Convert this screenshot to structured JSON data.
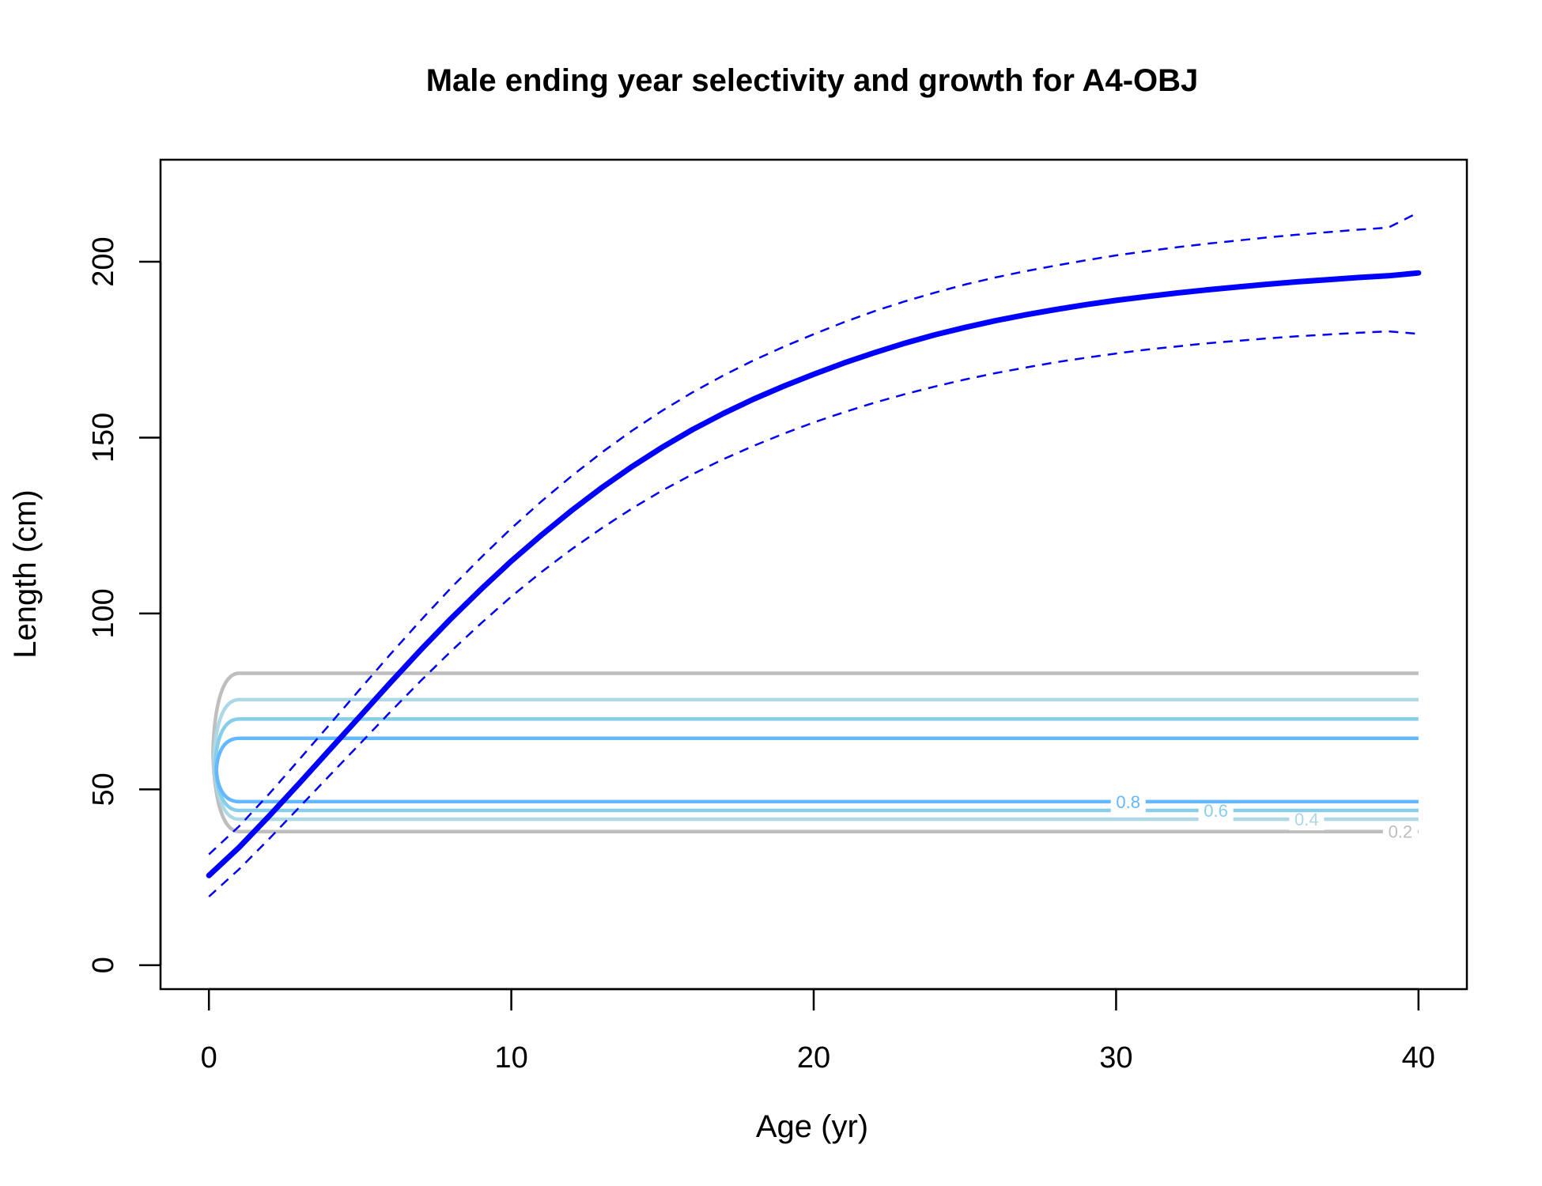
{
  "chart_data": {
    "type": "line",
    "title": "Male ending year selectivity and growth for A4-OBJ",
    "xlabel": "Age (yr)",
    "ylabel": "Length (cm)",
    "xlim": [
      -1.6,
      41.6
    ],
    "ylim": [
      -6.8,
      229
    ],
    "xticks": [
      0,
      10,
      20,
      30,
      40
    ],
    "yticks": [
      0,
      50,
      100,
      150,
      200
    ],
    "grid": false,
    "series": [
      {
        "role": "mean",
        "color": "#0000FF",
        "style": "solid",
        "x": [
          0,
          1,
          2,
          3,
          4,
          5,
          6,
          7,
          8,
          9,
          10,
          11,
          12,
          13,
          14,
          15,
          16,
          17,
          18,
          19,
          20,
          21,
          22,
          23,
          24,
          25,
          26,
          27,
          28,
          29,
          30,
          31,
          32,
          33,
          34,
          35,
          36,
          37,
          38,
          39,
          40
        ],
        "y": [
          25.5,
          33.5,
          42.5,
          51.8,
          61.3,
          70.8,
          80.3,
          89.6,
          98.5,
          106.9,
          114.9,
          122.3,
          129.3,
          135.8,
          141.8,
          147.3,
          152.3,
          156.8,
          160.9,
          164.6,
          168,
          171.2,
          174.1,
          176.8,
          179.2,
          181.3,
          183.2,
          184.9,
          186.4,
          187.8,
          189,
          190.1,
          191.1,
          192,
          192.8,
          193.6,
          194.3,
          194.9,
          195.5,
          196,
          196.8
        ]
      },
      {
        "role": "upper-interval",
        "color": "#0000FF",
        "style": "dashed",
        "x": [
          0,
          1,
          2,
          3,
          4,
          5,
          6,
          7,
          8,
          9,
          10,
          11,
          12,
          13,
          14,
          15,
          16,
          17,
          18,
          19,
          20,
          21,
          22,
          23,
          24,
          25,
          26,
          27,
          28,
          29,
          30,
          31,
          32,
          33,
          34,
          35,
          36,
          37,
          38,
          39,
          40
        ],
        "y": [
          31.5,
          39.5,
          48.8,
          58.6,
          68.5,
          78.5,
          88.4,
          98,
          107.2,
          115.9,
          124.2,
          131.9,
          139.1,
          145.8,
          152,
          157.7,
          162.9,
          167.6,
          171.9,
          175.8,
          179.4,
          182.8,
          185.9,
          188.7,
          191.2,
          193.5,
          195.5,
          197.3,
          198.9,
          200.4,
          201.8,
          203,
          204.1,
          205.1,
          206,
          206.9,
          207.7,
          208.4,
          209.1,
          209.7,
          214
        ]
      },
      {
        "role": "lower-interval",
        "color": "#0000FF",
        "style": "dashed",
        "x": [
          0,
          1,
          2,
          3,
          4,
          5,
          6,
          7,
          8,
          9,
          10,
          11,
          12,
          13,
          14,
          15,
          16,
          17,
          18,
          19,
          20,
          21,
          22,
          23,
          24,
          25,
          26,
          27,
          28,
          29,
          30,
          31,
          32,
          33,
          34,
          35,
          36,
          37,
          38,
          39,
          40
        ],
        "y": [
          19.5,
          27.3,
          36,
          45,
          54,
          63,
          72,
          80.8,
          89.2,
          97.2,
          104.8,
          111.8,
          118.3,
          124.3,
          129.9,
          135,
          139.6,
          143.8,
          147.6,
          151.1,
          154.3,
          157.2,
          159.9,
          162.3,
          164.5,
          166.5,
          168.3,
          169.9,
          171.4,
          172.7,
          173.9,
          175,
          175.9,
          176.8,
          177.5,
          178.2,
          178.8,
          179.3,
          179.8,
          180.2,
          179.5
        ]
      }
    ],
    "contours": [
      {
        "level": 0.2,
        "label": "0.2",
        "color": "#BEBEBE",
        "lower": 38,
        "upper": 83,
        "label_x": 39.4
      },
      {
        "level": 0.4,
        "label": "0.4",
        "color": "#ADD8E6",
        "lower": 41.5,
        "upper": 75.5,
        "label_x": 36.3
      },
      {
        "level": 0.6,
        "label": "0.6",
        "color": "#87CEEB",
        "lower": 44,
        "upper": 70,
        "label_x": 33.3
      },
      {
        "level": 0.8,
        "label": "0.8",
        "color": "#63B8FF",
        "lower": 46.5,
        "upper": 64.5,
        "label_x": 30.4
      }
    ]
  }
}
